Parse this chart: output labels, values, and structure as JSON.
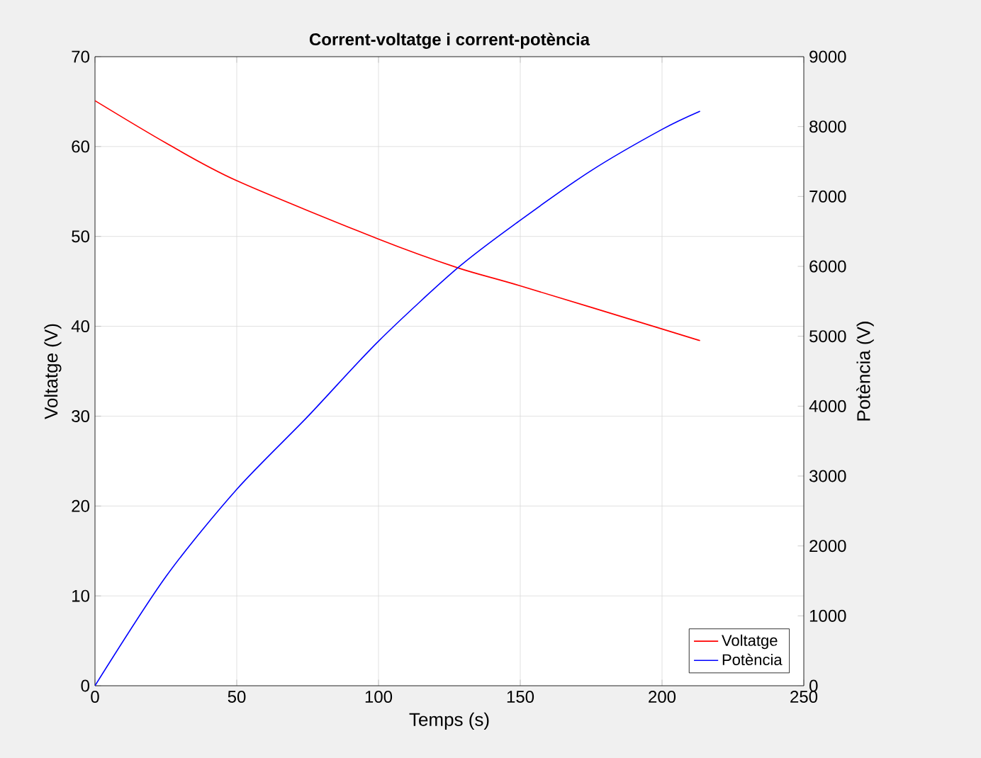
{
  "chart_data": {
    "type": "line",
    "title": "Corrent-voltatge i corrent-potència",
    "xlabel": "Temps (s)",
    "ylabel": "Voltatge (V)",
    "y2label": "Potència (V)",
    "xlim": [
      0,
      250
    ],
    "xticks": [
      0,
      50,
      100,
      150,
      200,
      250
    ],
    "ylim": [
      0,
      70
    ],
    "yticks": [
      0,
      10,
      20,
      30,
      40,
      50,
      60,
      70
    ],
    "y2lim": [
      0,
      9000
    ],
    "y2ticks": [
      0,
      1000,
      2000,
      3000,
      4000,
      5000,
      6000,
      7000,
      8000,
      9000
    ],
    "grid": true,
    "legend": "bottom right",
    "marker": "none",
    "line_style": "solid",
    "series": [
      {
        "name": "Voltatge",
        "color": "#ff0000",
        "x": [
          0,
          25,
          50,
          100,
          128,
          150,
          200,
          213.4
        ],
        "values": [
          65.1,
          60.4,
          56.2,
          49.7,
          46.5,
          44.5,
          39.7,
          38.4
        ]
      },
      {
        "name": "Potència",
        "color": "#0000ff",
        "axis": "y2",
        "x": [
          0,
          25,
          50,
          75,
          100,
          128,
          150,
          175,
          200,
          213.4
        ],
        "values": [
          0,
          1560,
          2810,
          3850,
          4930,
          5980,
          6660,
          7370,
          7960,
          8220
        ]
      }
    ]
  }
}
